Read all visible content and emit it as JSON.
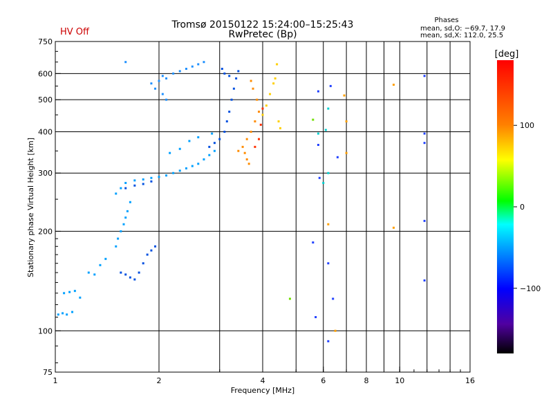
{
  "header": {
    "title_line1": "Tromsø 20150122 15:24:00–15:25:43",
    "title_line2": "RwPretec (Bp)",
    "hv_status": "HV Off",
    "hv_color": "#cc0000",
    "phases_title": "Phases",
    "phases_o": "mean, sd,O: −69.7, 17.9",
    "phases_x": "mean, sd,X: 112.0, 25.5"
  },
  "chart_data": {
    "type": "scatter",
    "xlabel": "Frequency [MHz]",
    "ylabel": "Stationary phase Virtual Height [km]",
    "x_scale": "log",
    "y_scale": "log",
    "xlim": [
      1,
      16
    ],
    "ylim": [
      75,
      750
    ],
    "x_ticks": [
      1,
      2,
      4,
      6,
      8,
      10,
      16
    ],
    "y_ticks": [
      75,
      100,
      200,
      300,
      400,
      500,
      600,
      750
    ],
    "x_gridlines": [
      2,
      3,
      4,
      5,
      6,
      7,
      8,
      9,
      10,
      12,
      14
    ],
    "y_gridlines": [
      100,
      200,
      300,
      400,
      500,
      600
    ],
    "grid": true,
    "colorbar": {
      "label": "[deg]",
      "range": [
        -180,
        180
      ],
      "ticks": [
        100,
        0,
        -100
      ]
    },
    "series": [
      {
        "color": "#00a0ff",
        "phase": -60,
        "points": [
          [
            1.02,
            112
          ],
          [
            1.05,
            113
          ],
          [
            1.08,
            112
          ],
          [
            1.12,
            114
          ],
          [
            1.06,
            130
          ],
          [
            1.1,
            131
          ],
          [
            1.14,
            132
          ],
          [
            1.18,
            126
          ],
          [
            1.25,
            150
          ],
          [
            1.3,
            148
          ],
          [
            1.35,
            158
          ],
          [
            1.4,
            165
          ],
          [
            1.5,
            180
          ],
          [
            1.52,
            190
          ],
          [
            1.55,
            200
          ],
          [
            1.58,
            210
          ],
          [
            1.6,
            220
          ],
          [
            1.62,
            230
          ],
          [
            1.65,
            245
          ],
          [
            1.5,
            260
          ],
          [
            1.55,
            270
          ],
          [
            1.6,
            280
          ],
          [
            1.7,
            285
          ],
          [
            1.8,
            287
          ],
          [
            1.9,
            290
          ],
          [
            2.0,
            292
          ],
          [
            2.1,
            295
          ],
          [
            2.2,
            300
          ],
          [
            2.3,
            305
          ],
          [
            2.4,
            310
          ],
          [
            2.5,
            315
          ],
          [
            2.6,
            320
          ],
          [
            2.7,
            330
          ],
          [
            2.8,
            340
          ],
          [
            2.9,
            350
          ],
          [
            2.15,
            345
          ],
          [
            2.3,
            355
          ],
          [
            2.45,
            375
          ],
          [
            2.6,
            385
          ],
          [
            2.85,
            395
          ]
        ]
      },
      {
        "color": "#0050e0",
        "phase": -110,
        "points": [
          [
            1.55,
            150
          ],
          [
            1.6,
            148
          ],
          [
            1.65,
            145
          ],
          [
            1.7,
            143
          ],
          [
            1.75,
            150
          ],
          [
            1.8,
            160
          ],
          [
            1.85,
            170
          ],
          [
            1.9,
            175
          ],
          [
            1.95,
            180
          ],
          [
            1.6,
            270
          ],
          [
            1.7,
            275
          ],
          [
            1.8,
            278
          ],
          [
            1.9,
            283
          ],
          [
            2.8,
            360
          ],
          [
            2.9,
            370
          ],
          [
            3.0,
            380
          ],
          [
            3.1,
            400
          ],
          [
            3.15,
            430
          ],
          [
            3.2,
            460
          ],
          [
            3.25,
            500
          ],
          [
            3.3,
            540
          ],
          [
            3.35,
            580
          ],
          [
            3.4,
            610
          ],
          [
            3.05,
            620
          ],
          [
            3.1,
            600
          ],
          [
            3.2,
            590
          ]
        ]
      },
      {
        "color": "#1e90ff",
        "phase": -80,
        "points": [
          [
            1.6,
            650
          ],
          [
            1.9,
            560
          ],
          [
            2.0,
            570
          ],
          [
            2.05,
            590
          ],
          [
            2.1,
            580
          ],
          [
            2.2,
            600
          ],
          [
            2.3,
            610
          ],
          [
            2.4,
            620
          ],
          [
            2.5,
            630
          ],
          [
            2.6,
            640
          ],
          [
            2.7,
            650
          ],
          [
            1.95,
            540
          ],
          [
            2.05,
            520
          ],
          [
            2.1,
            500
          ]
        ]
      },
      {
        "color": "#ff8c00",
        "phase": 140,
        "points": [
          [
            3.4,
            350
          ],
          [
            3.5,
            360
          ],
          [
            3.6,
            380
          ],
          [
            3.7,
            400
          ],
          [
            3.8,
            430
          ],
          [
            3.9,
            460
          ],
          [
            3.85,
            500
          ],
          [
            3.75,
            540
          ],
          [
            3.7,
            570
          ],
          [
            3.6,
            330
          ],
          [
            3.65,
            320
          ],
          [
            3.55,
            345
          ]
        ]
      },
      {
        "color": "#ffd000",
        "phase": 100,
        "points": [
          [
            4.0,
            450
          ],
          [
            4.1,
            480
          ],
          [
            4.2,
            520
          ],
          [
            4.3,
            560
          ],
          [
            4.35,
            580
          ],
          [
            4.4,
            640
          ],
          [
            4.5,
            410
          ],
          [
            4.45,
            430
          ]
        ]
      },
      {
        "color": "#ff3000",
        "phase": 160,
        "points": [
          [
            3.8,
            360
          ],
          [
            3.9,
            380
          ],
          [
            3.95,
            420
          ],
          [
            4.0,
            470
          ]
        ]
      },
      {
        "color": "#00d0d0",
        "phase": -30,
        "points": [
          [
            5.8,
            395
          ],
          [
            6.1,
            405
          ],
          [
            6.2,
            470
          ],
          [
            6.0,
            280
          ],
          [
            6.2,
            300
          ]
        ]
      },
      {
        "color": "#2040ff",
        "phase": -120,
        "points": [
          [
            5.8,
            530
          ],
          [
            6.3,
            550
          ],
          [
            5.8,
            365
          ],
          [
            5.85,
            290
          ],
          [
            6.6,
            335
          ],
          [
            5.6,
            185
          ],
          [
            6.2,
            160
          ],
          [
            6.4,
            125
          ],
          [
            5.7,
            110
          ],
          [
            6.2,
            93
          ],
          [
            11.8,
            590
          ],
          [
            11.8,
            395
          ],
          [
            11.8,
            370
          ],
          [
            11.8,
            215
          ],
          [
            11.8,
            142
          ]
        ]
      },
      {
        "color": "#ffa000",
        "phase": 120,
        "points": [
          [
            6.9,
            515
          ],
          [
            7.0,
            430
          ],
          [
            7.0,
            345
          ],
          [
            9.6,
            555
          ],
          [
            9.6,
            205
          ],
          [
            6.2,
            210
          ],
          [
            6.5,
            100
          ]
        ]
      },
      {
        "color": "#70e000",
        "phase": 30,
        "points": [
          [
            4.8,
            125
          ],
          [
            5.6,
            435
          ]
        ]
      }
    ]
  }
}
